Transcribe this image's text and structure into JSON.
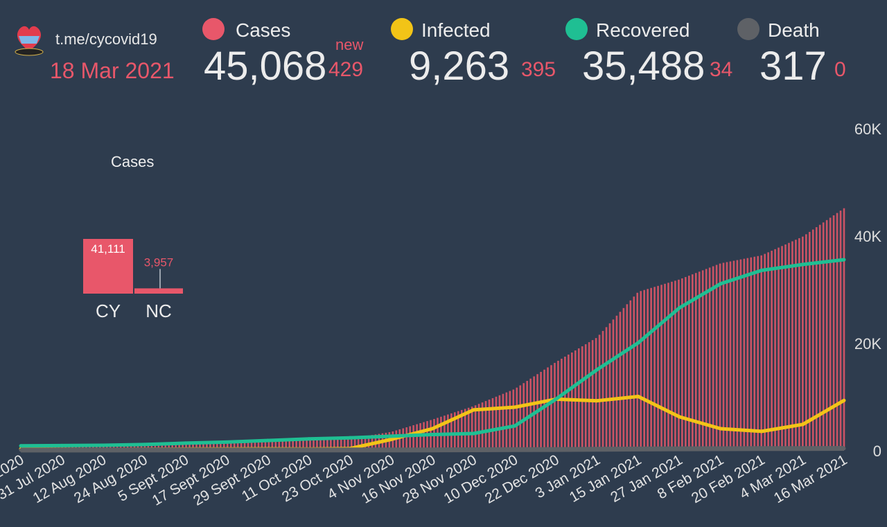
{
  "header": {
    "channel": "t.me/cycovid19",
    "date": "18 Mar 2021",
    "new_label": "new",
    "stats": [
      {
        "key": "cases",
        "label": "Cases",
        "value": "45,068",
        "delta": "429",
        "color": "#e8576a"
      },
      {
        "key": "infected",
        "label": "Infected",
        "value": "9,263",
        "delta": "395",
        "color": "#f2c417"
      },
      {
        "key": "recovered",
        "label": "Recovered",
        "value": "35,488",
        "delta": "34",
        "color": "#1fbf93"
      },
      {
        "key": "death",
        "label": "Death",
        "value": "317",
        "delta": "0",
        "color": "#5e6166"
      }
    ]
  },
  "chart_data": [
    {
      "type": "bar",
      "title": "Cases",
      "categories": [
        "CY",
        "NC"
      ],
      "values": [
        41111,
        3957
      ],
      "value_labels": [
        "41,111",
        "3,957"
      ],
      "color": "#e8576a"
    },
    {
      "type": "line",
      "title": "",
      "x_tick_labels": [
        "2020",
        "31 Jul 2020",
        "12 Aug 2020",
        "24 Aug 2020",
        "5 Sept 2020",
        "17 Sept 2020",
        "29 Sept 2020",
        "11 Oct 2020",
        "23 Oct 2020",
        "4 Nov 2020",
        "16 Nov 2020",
        "28 Nov 2020",
        "10 Dec 2020",
        "22 Dec 2020",
        "3 Jan 2021",
        "15 Jan 2021",
        "27 Jan 2021",
        "8 Feb 2021",
        "20 Feb 2021",
        "4 Mar 2021",
        "16 Mar 2021"
      ],
      "y_ticks": [
        "0",
        "20K",
        "40K",
        "60K"
      ],
      "ylim": [
        0,
        60000
      ],
      "axis_position": "right",
      "series": [
        {
          "name": "Cases",
          "type": "bar",
          "color": "#e8576a",
          "values": [
            1020,
            1050,
            1100,
            1180,
            1400,
            1600,
            1750,
            1950,
            2150,
            3400,
            5700,
            8200,
            11400,
            16400,
            21000,
            29500,
            31800,
            34800,
            36300,
            39800,
            45068
          ]
        },
        {
          "name": "Infected",
          "type": "line",
          "color": "#f2c417",
          "values": [
            200,
            150,
            120,
            150,
            200,
            220,
            250,
            200,
            300,
            2000,
            4000,
            7500,
            8000,
            9500,
            9200,
            10000,
            6200,
            4000,
            3500,
            4800,
            9263
          ]
        },
        {
          "name": "Recovered",
          "type": "line",
          "color": "#1fbf93",
          "values": [
            800,
            850,
            900,
            1050,
            1300,
            1500,
            1800,
            2100,
            2300,
            2600,
            2900,
            3100,
            4500,
            9500,
            15000,
            20000,
            26500,
            31000,
            33500,
            34600,
            35488
          ]
        },
        {
          "name": "Death",
          "type": "line",
          "color": "#5e6166",
          "values": [
            19,
            19,
            19,
            20,
            22,
            22,
            23,
            24,
            25,
            27,
            40,
            65,
            90,
            120,
            150,
            210,
            240,
            260,
            280,
            300,
            317
          ]
        }
      ]
    }
  ]
}
